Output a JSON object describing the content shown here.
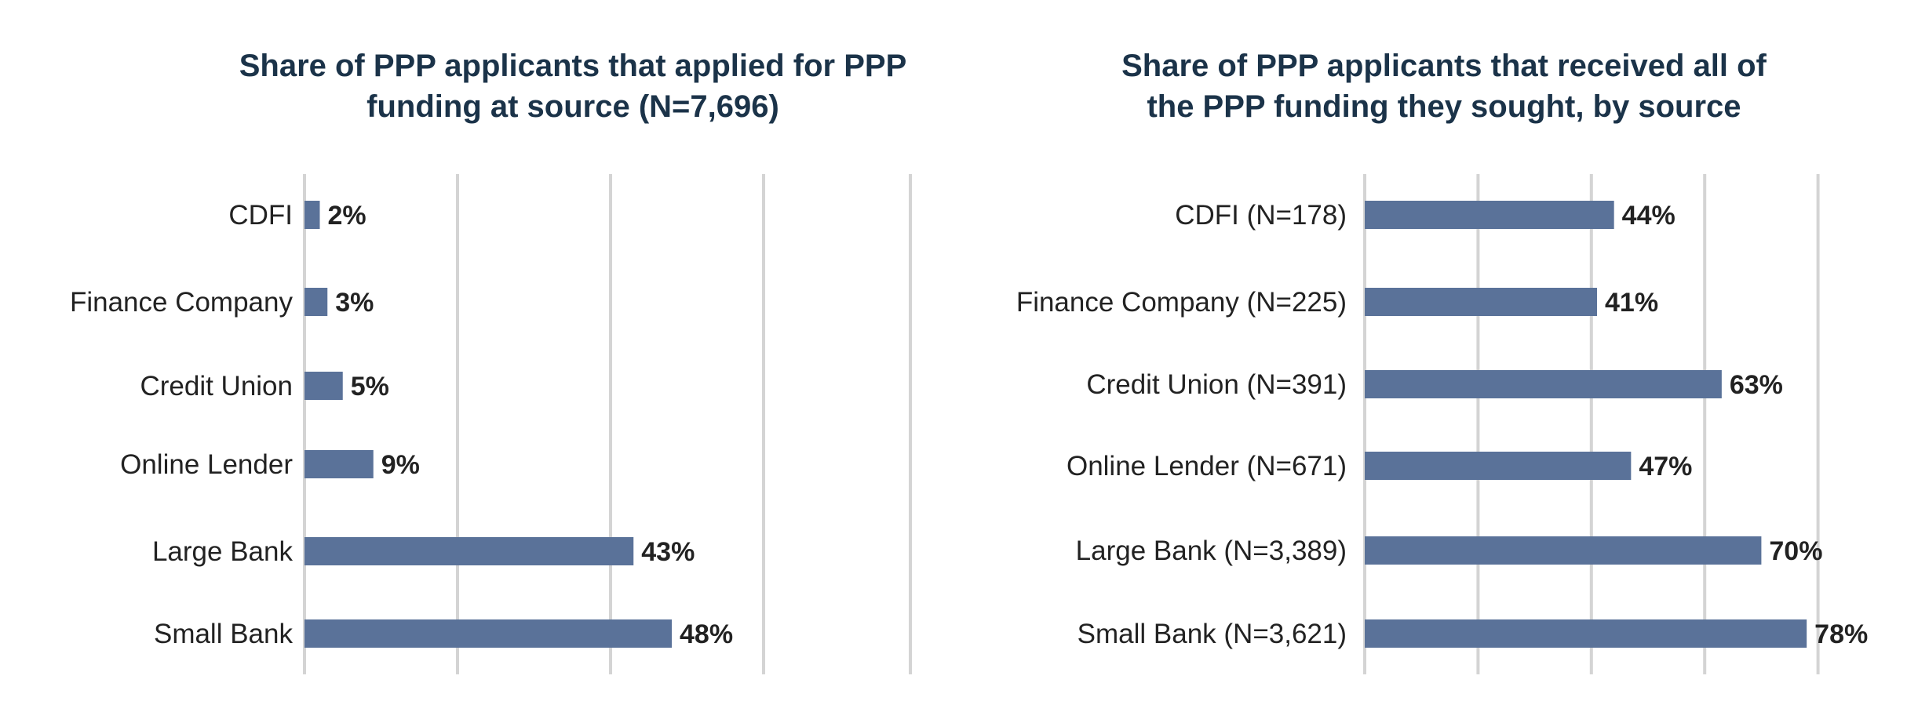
{
  "colors": {
    "bar": "#5a7299",
    "gridline": "#d4d4d4",
    "title": "#1b3349",
    "text": "#222222"
  },
  "chart_data": [
    {
      "type": "bar",
      "orientation": "horizontal",
      "title": "Share of PPP applicants that applied for PPP\nfunding at source (N=7,696)",
      "categories": [
        "CDFI",
        "Finance Company",
        "Credit Union",
        "Online Lender",
        "Large Bank",
        "Small Bank"
      ],
      "values": [
        2,
        3,
        5,
        9,
        43,
        48
      ],
      "value_labels": [
        "2%",
        "3%",
        "5%",
        "9%",
        "43%",
        "48%"
      ],
      "unit": "%",
      "xlim": [
        0,
        60
      ],
      "grid": true,
      "gridline_values": [
        0,
        20,
        40,
        60
      ],
      "legend": "none"
    },
    {
      "type": "bar",
      "orientation": "horizontal",
      "title": "Share of PPP applicants that received all of\nthe PPP funding they sought, by source",
      "categories": [
        "CDFI (N=178)",
        "Finance Company (N=225)",
        "Credit Union (N=391)",
        "Online Lender (N=671)",
        "Large Bank (N=3,389)",
        "Small Bank (N=3,621)"
      ],
      "values": [
        44,
        41,
        63,
        47,
        70,
        78
      ],
      "value_labels": [
        "44%",
        "41%",
        "63%",
        "47%",
        "70%",
        "78%"
      ],
      "unit": "%",
      "xlim": [
        0,
        80
      ],
      "grid": true,
      "gridline_values": [
        0,
        20,
        40,
        60,
        80
      ],
      "legend": "none"
    }
  ]
}
